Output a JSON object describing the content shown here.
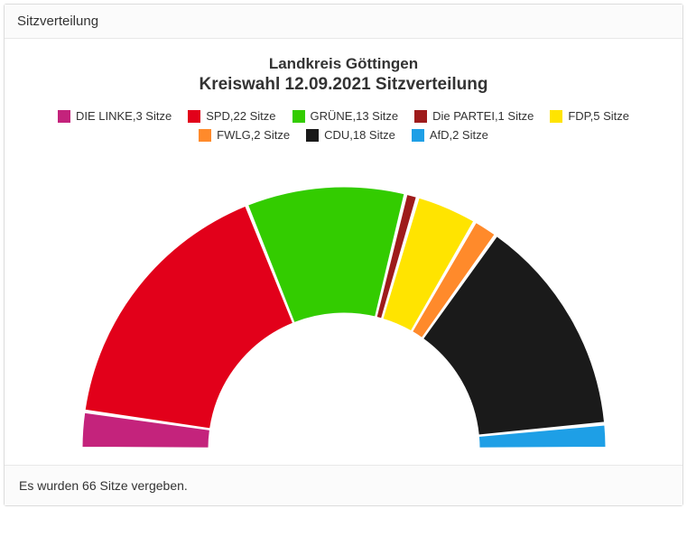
{
  "header": {
    "title": "Sitzverteilung"
  },
  "chart": {
    "type": "half-donut",
    "title_line1": "Landkreis Göttingen",
    "title_line2": "Kreiswahl 12.09.2021 Sitzverteilung",
    "title_fontsize_line1": 17,
    "title_fontsize_line2": 19,
    "title_color": "#333333",
    "legend_fontsize": 13,
    "legend_text_color": "#333333",
    "background_color": "#ffffff",
    "outer_radius": 290,
    "inner_radius": 150,
    "slice_gap_deg": 0.6,
    "total_seats": 66,
    "seat_unit_singular": "Sitze",
    "seat_unit_plural": "Sitze",
    "parties": [
      {
        "name": "DIE LINKE",
        "seats": 3,
        "color": "#c4237c"
      },
      {
        "name": "SPD",
        "seats": 22,
        "color": "#e2001a"
      },
      {
        "name": "GRÜNE",
        "seats": 13,
        "color": "#33cc00"
      },
      {
        "name": "Die PARTEI",
        "seats": 1,
        "color": "#9e1b1b"
      },
      {
        "name": "FDP",
        "seats": 5,
        "color": "#ffe400"
      },
      {
        "name": "FWLG",
        "seats": 2,
        "color": "#ff8a2b"
      },
      {
        "name": "CDU",
        "seats": 18,
        "color": "#1a1a1a"
      },
      {
        "name": "AfD",
        "seats": 2,
        "color": "#1e9fe6"
      }
    ]
  },
  "footer": {
    "text": "Es wurden 66 Sitze vergeben."
  }
}
